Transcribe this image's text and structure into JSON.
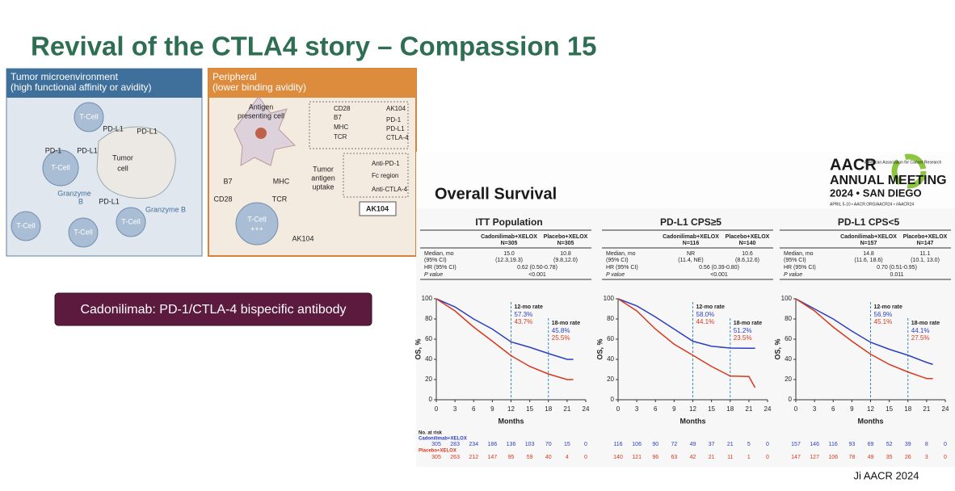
{
  "title": "Revival of the CTLA4 story – Compassion 15",
  "diagram": {
    "left": {
      "heading": [
        "Tumor microenvironment",
        "(high functional affinity or avidity)"
      ],
      "labels": [
        "T-Cell",
        "T-Cell",
        "T-Cell",
        "T-Cell",
        "T-Cell",
        "PD-L1",
        "PD-L1",
        "PD-L1",
        "PD-1",
        "PD-L1",
        "Tumor",
        "cell",
        "Granzyme",
        "B",
        "Granzyme B"
      ]
    },
    "right": {
      "heading": [
        "Peripheral",
        "(lower binding avidity)"
      ],
      "labels": [
        "Antigen",
        "presenting cell",
        "B7",
        "MHC",
        "CD28",
        "TCR",
        "T-Cell",
        "+++",
        "Tumor",
        "antigen",
        "uptake",
        "AK104"
      ],
      "legend": [
        "CD28",
        "B7",
        "MHC",
        "TCR",
        "AK104",
        "PD-1",
        "PD-L1",
        "CTLA-4",
        "Anti-PD-1",
        "Fc region",
        "Anti-CTLA-4"
      ],
      "box": "AK104"
    }
  },
  "callout": "Cadonilimab: PD-1/CTLA-4 bispecific antibody",
  "inset": {
    "heading": "Overall Survival",
    "logo": [
      "AACR",
      "American Association for Cancer Research",
      "ANNUAL MEETING",
      "2024 • SAN DIEGO",
      "APRIL 5-10 • AACR.ORG/AACR24 • #AACR24"
    ],
    "x_axis_label": "Months",
    "y_axis_label": "OS, %",
    "xlim": [
      0,
      24
    ],
    "ylim": [
      0,
      100
    ],
    "xticks": [
      0,
      3,
      6,
      9,
      12,
      15,
      18,
      21,
      24
    ],
    "yticks": [
      0,
      20,
      40,
      60,
      80,
      100
    ],
    "risk_heading": "No. at risk",
    "arms": [
      {
        "name": "Cadonilimab+XELOX",
        "color": "#2b3fc0"
      },
      {
        "name": "Placebo+XELOX",
        "color": "#d8381c"
      }
    ],
    "panels": [
      {
        "title": "ITT Population",
        "n": [
          "N=305",
          "N=305"
        ],
        "rows": [
          [
            "Median, mo",
            "15.0",
            "10.8"
          ],
          [
            "(95% CI)",
            "(12.3,19.3)",
            "(9.8,12.0)"
          ],
          [
            "HR (95% CI)",
            "0.62 (0.50-0.78)"
          ],
          [
            "P value",
            "<0.001"
          ]
        ],
        "x": [
          0,
          3,
          6,
          9,
          12,
          15,
          18,
          21,
          22
        ],
        "series": [
          {
            "values": [
              100,
              92,
              80,
              70,
              57.3,
              52,
              45.8,
              40,
              40
            ]
          },
          {
            "values": [
              100,
              88,
              72,
              58,
              43.7,
              33,
              25.5,
              20,
              20
            ]
          }
        ],
        "annotations": [
          {
            "month": 12,
            "label": "12-mo rate",
            "values": [
              "57.3%",
              "43.7%"
            ]
          },
          {
            "month": 18,
            "label": "18-mo rate",
            "values": [
              "45.8%",
              "25.5%"
            ]
          }
        ],
        "risk": [
          [
            305,
            283,
            234,
            186,
            136,
            103,
            70,
            15,
            0
          ],
          [
            305,
            263,
            212,
            147,
            95,
            59,
            40,
            4,
            0
          ]
        ]
      },
      {
        "title": "PD-L1 CPS≥5",
        "n": [
          "N=116",
          "N=140"
        ],
        "rows": [
          [
            "Median, mo",
            "NR",
            "10.6"
          ],
          [
            "(95% CI)",
            "(11.4, NE)",
            "(8.6,12.6)"
          ],
          [
            "HR (95% CI)",
            "0.56 (0.39-0.80)"
          ],
          [
            "P value",
            "<0.001"
          ]
        ],
        "x": [
          0,
          3,
          6,
          9,
          12,
          15,
          18,
          21,
          22
        ],
        "series": [
          {
            "values": [
              100,
              93,
              82,
              70,
              58,
              53,
              51.2,
              51,
              51
            ]
          },
          {
            "values": [
              100,
              88,
              70,
              55,
              44.1,
              33,
              23.5,
              23,
              12
            ]
          }
        ],
        "annotations": [
          {
            "month": 12,
            "label": "12-mo rate",
            "values": [
              "58.0%",
              "44.1%"
            ]
          },
          {
            "month": 18,
            "label": "18-mo rate",
            "values": [
              "51.2%",
              "23.5%"
            ]
          }
        ],
        "risk": [
          [
            116,
            106,
            90,
            72,
            49,
            37,
            21,
            5,
            0
          ],
          [
            140,
            121,
            96,
            63,
            42,
            21,
            11,
            1,
            0
          ]
        ]
      },
      {
        "title": "PD-L1 CPS<5",
        "n": [
          "N=157",
          "N=147"
        ],
        "rows": [
          [
            "Median, mo",
            "14.8",
            "11.1"
          ],
          [
            "(95% CI)",
            "(11.6, 18.6)",
            "(10.1, 13.0)"
          ],
          [
            "HR (95% CI)",
            "0.70 (0.51-0.95)"
          ],
          [
            "P value",
            "0.011"
          ]
        ],
        "x": [
          0,
          3,
          6,
          9,
          12,
          15,
          18,
          21,
          22
        ],
        "series": [
          {
            "values": [
              100,
              90,
              80,
              68,
              56.9,
              50,
              44.1,
              37,
              35
            ]
          },
          {
            "values": [
              100,
              88,
              72,
              58,
              45.1,
              35,
              27.5,
              21,
              21
            ]
          }
        ],
        "annotations": [
          {
            "month": 12,
            "label": "12-mo rate",
            "values": [
              "56.9%",
              "45.1%"
            ]
          },
          {
            "month": 18,
            "label": "18-mo rate",
            "values": [
              "44.1%",
              "27.5%"
            ]
          }
        ],
        "risk": [
          [
            157,
            146,
            116,
            93,
            69,
            52,
            39,
            8,
            0
          ],
          [
            147,
            127,
            106,
            78,
            49,
            35,
            26,
            3,
            0
          ]
        ]
      }
    ]
  },
  "footer": "Ji AACR 2024"
}
